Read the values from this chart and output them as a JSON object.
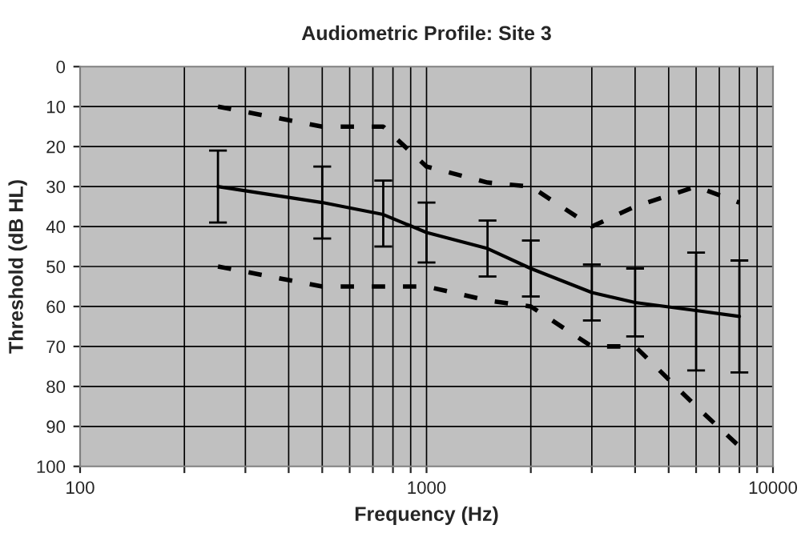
{
  "chart_data": {
    "type": "line",
    "title": "Audiometric Profile: Site 3",
    "xlabel": "Frequency (Hz)",
    "ylabel": "Threshold (dB HL)",
    "x": [
      250,
      500,
      750,
      1000,
      1500,
      2000,
      3000,
      4000,
      6000,
      8000
    ],
    "series": [
      {
        "color": "#000000",
        "line_style": "solid",
        "values": [
          30,
          34,
          37,
          41.5,
          45.5,
          50.5,
          56.5,
          59,
          61,
          62.5
        ],
        "errors": [
          [
            21,
            39
          ],
          [
            25,
            43
          ],
          [
            28.5,
            45
          ],
          [
            34,
            49
          ],
          [
            38.5,
            52.5
          ],
          [
            43.5,
            57.5
          ],
          [
            49.5,
            63.5
          ],
          [
            50.5,
            67.5
          ],
          [
            46.5,
            76
          ],
          [
            48.5,
            76.5
          ]
        ]
      },
      {
        "color": "#000000",
        "line_style": "dashed",
        "values": [
          10,
          15,
          15,
          25,
          29,
          30,
          40,
          35,
          30,
          34
        ]
      },
      {
        "color": "#000000",
        "line_style": "dashed",
        "values": [
          50,
          55,
          55,
          55,
          58.5,
          60,
          70,
          70,
          85,
          95
        ]
      }
    ],
    "log": "x",
    "xlim": [
      100,
      10000
    ],
    "xticks": [
      100,
      {
        "value": 200,
        "label": null
      },
      {
        "value": 300,
        "label": null
      },
      {
        "value": 400,
        "label": null
      },
      {
        "value": 500,
        "label": null
      },
      {
        "value": 600,
        "label": null
      },
      {
        "value": 700,
        "label": null
      },
      {
        "value": 800,
        "label": null
      },
      {
        "value": 900,
        "label": null
      },
      1000,
      {
        "value": 2000,
        "label": null
      },
      {
        "value": 3000,
        "label": null
      },
      {
        "value": 4000,
        "label": null
      },
      {
        "value": 5000,
        "label": null
      },
      {
        "value": 6000,
        "label": null
      },
      {
        "value": 7000,
        "label": null
      },
      {
        "value": 8000,
        "label": null
      },
      {
        "value": 9000,
        "label": null
      },
      10000
    ],
    "ylim": [
      100,
      0
    ],
    "yticks": [
      0,
      10,
      20,
      30,
      40,
      50,
      60,
      70,
      80,
      90,
      100
    ],
    "grid": true,
    "marker": "none"
  }
}
